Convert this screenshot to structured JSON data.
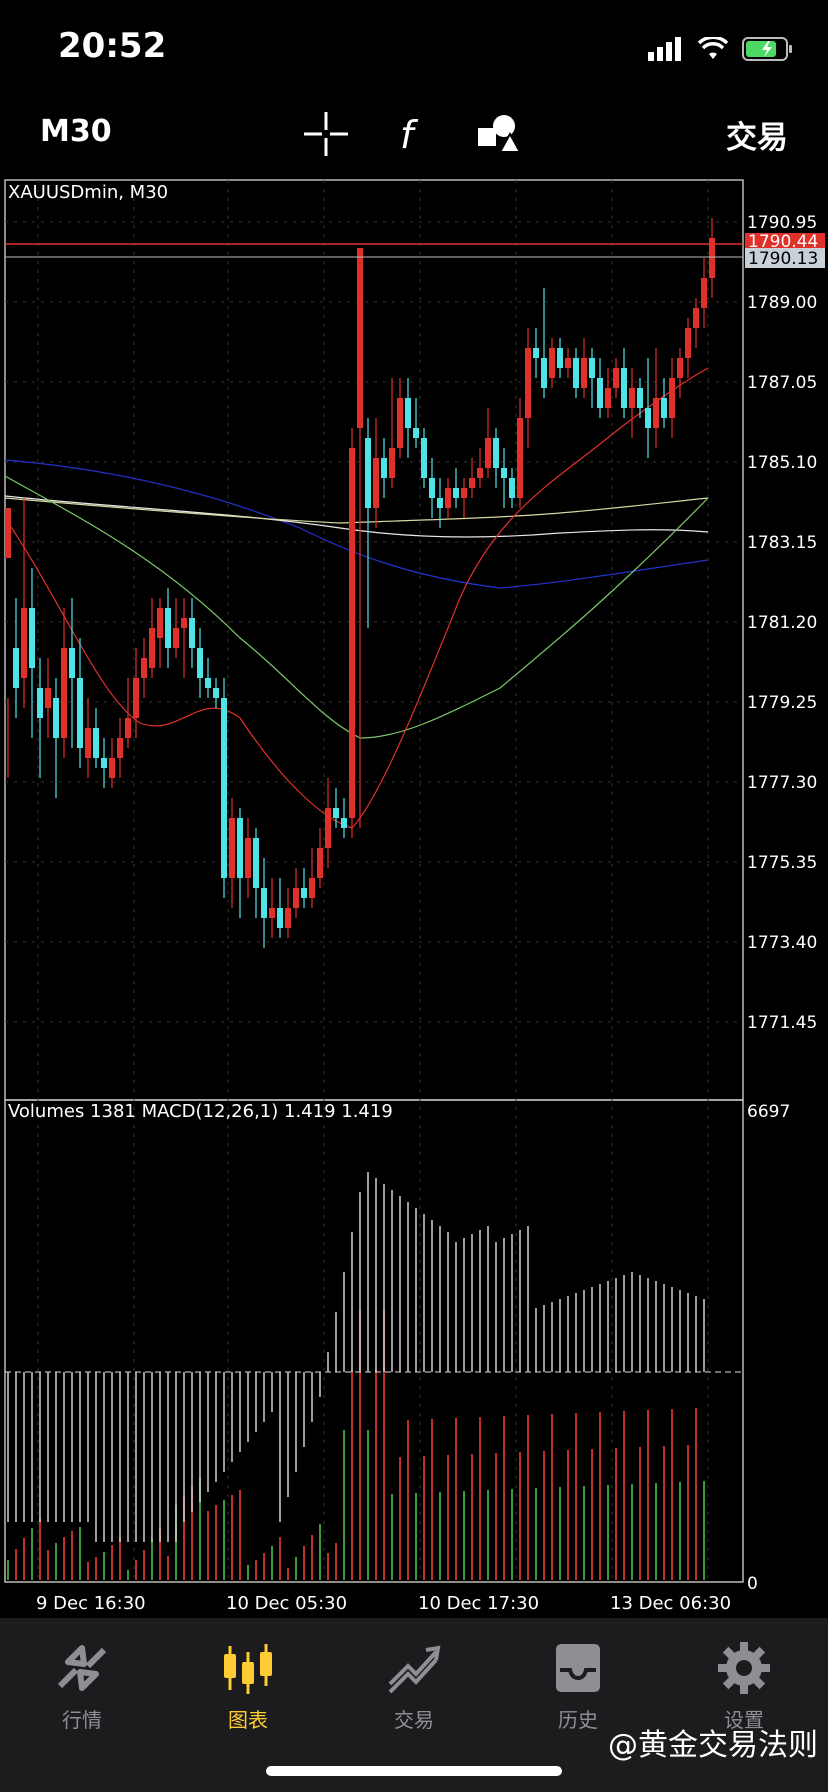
{
  "status_bar": {
    "time": "20:52"
  },
  "toolbar": {
    "timeframe": "M30",
    "trade_label": "交易"
  },
  "chart": {
    "title": "XAUUSDmin, M30",
    "price_axis": [
      "1790.95",
      "1789.00",
      "1787.05",
      "1785.10",
      "1783.15",
      "1781.20",
      "1779.25",
      "1777.30",
      "1775.35",
      "1773.40",
      "1771.45"
    ],
    "ask_price": "1790.44",
    "bid_price": "1790.13",
    "indicator_label": "Volumes 1381 MACD(12,26,1) 1.419 1.419",
    "indicator_max": "6697",
    "indicator_zero": "0",
    "time_axis": [
      "9 Dec 16:30",
      "10 Dec 05:30",
      "10 Dec 17:30",
      "13 Dec 06:30"
    ],
    "colors": {
      "bull": "#e0302a",
      "bear": "#4fe3e8",
      "ma_red": "#e0302a",
      "ma_green": "#7ec86a",
      "ma_white": "#e8e8e8",
      "ma_yellow": "#d8d8a0",
      "ma_blue": "#2233cc"
    }
  },
  "tabs": [
    {
      "label": "行情",
      "icon": "quotes-icon"
    },
    {
      "label": "图表",
      "icon": "chart-icon"
    },
    {
      "label": "交易",
      "icon": "trade-icon"
    },
    {
      "label": "历史",
      "icon": "history-icon"
    },
    {
      "label": "设置",
      "icon": "settings-icon"
    }
  ],
  "watermark": "@黄金交易法则"
}
